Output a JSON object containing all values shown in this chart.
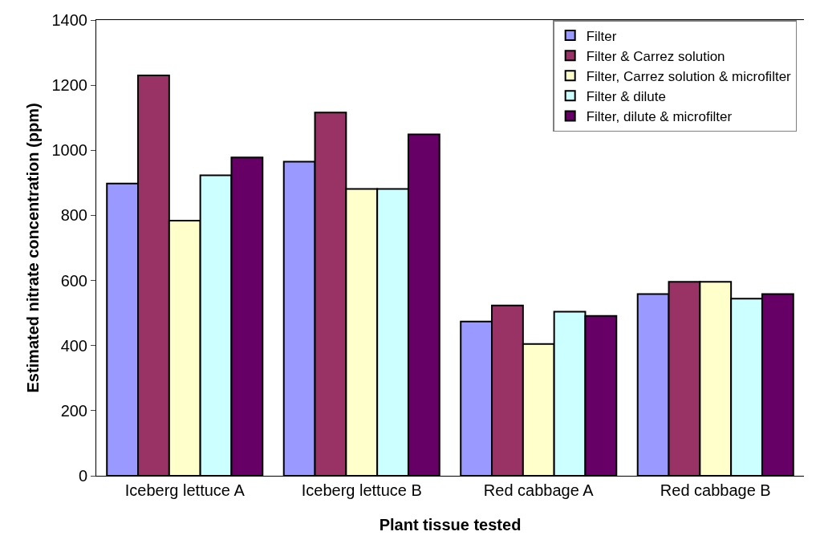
{
  "chart_data": {
    "type": "bar",
    "xlabel": "Plant tissue tested",
    "ylabel": "Estimated nitrate concentration (ppm)",
    "categories": [
      "Iceberg lettuce A",
      "Iceberg lettuce B",
      "Red cabbage A",
      "Red cabbage B"
    ],
    "series": [
      {
        "name": "Filter",
        "color": "#9999ff",
        "values": [
          898,
          965,
          474,
          558
        ]
      },
      {
        "name": "Filter & Carrez solution",
        "color": "#993366",
        "values": [
          1230,
          1116,
          523,
          596
        ]
      },
      {
        "name": "Filter, Carrez solution & microfilter",
        "color": "#ffffcc",
        "values": [
          784,
          881,
          405,
          596
        ]
      },
      {
        "name": "Filter & dilute",
        "color": "#ccffff",
        "values": [
          923,
          881,
          504,
          544
        ]
      },
      {
        "name": "Filter, dilute & microfilter",
        "color": "#660066",
        "values": [
          978,
          1049,
          491,
          558
        ]
      }
    ],
    "ylim": [
      0,
      1400
    ],
    "yticks": [
      0,
      200,
      400,
      600,
      800,
      1000,
      1200,
      1400
    ],
    "legend": "top right"
  }
}
